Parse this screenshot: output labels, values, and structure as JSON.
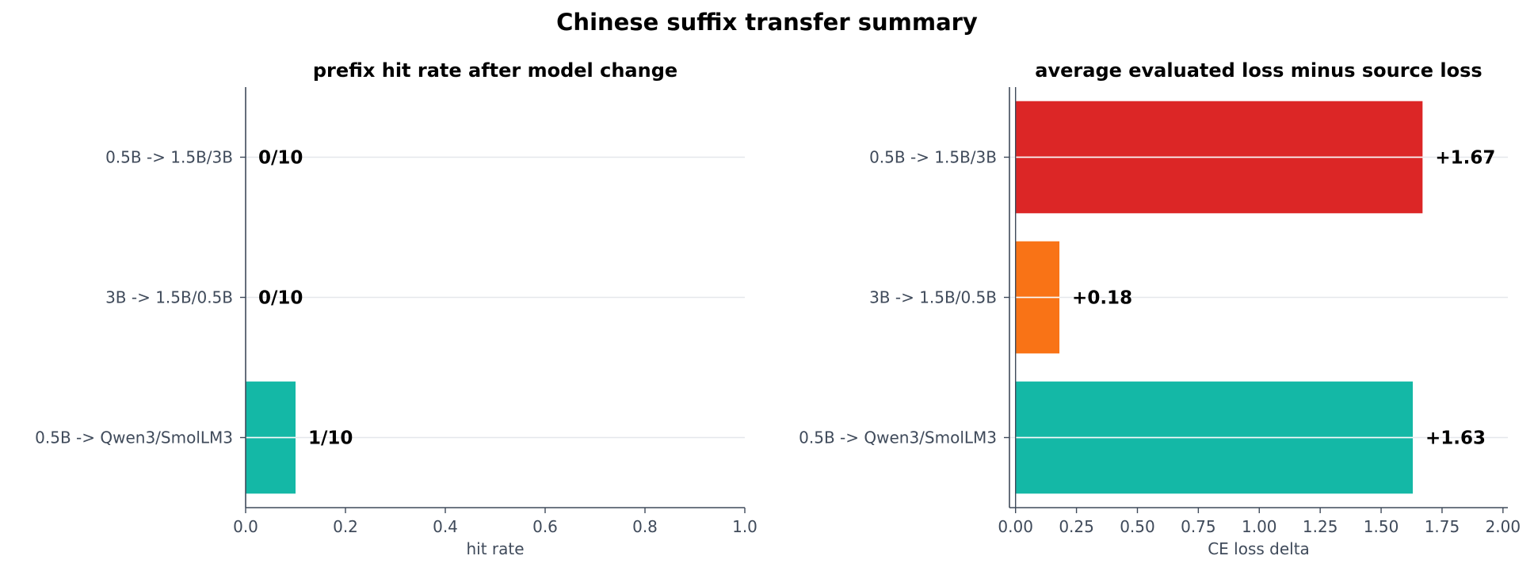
{
  "title": "Chinese suffix transfer summary",
  "colors": {
    "teal": "#14b8a6",
    "orange": "#f97316",
    "red": "#dc2626",
    "axis": "#3f4a5a",
    "grid": "#e5e7eb"
  },
  "chart_data": [
    {
      "type": "bar",
      "orientation": "horizontal",
      "title": "prefix hit rate after model change",
      "xlabel": "hit rate",
      "ylabel": "",
      "xlim": [
        0,
        1
      ],
      "xticks": [
        0,
        0.2,
        0.4,
        0.6,
        0.8,
        1
      ],
      "tick_labels": [
        "0.0",
        "0.2",
        "0.4",
        "0.6",
        "0.8",
        "1.0"
      ],
      "grid": "horizontal",
      "categories": [
        "0.5B -> 1.5B/3B",
        "3B -> 1.5B/0.5B",
        "0.5B -> Qwen3/SmolLM3"
      ],
      "values": [
        0,
        0,
        0.1
      ],
      "data_labels": [
        "0/10",
        "0/10",
        "1/10"
      ],
      "bar_colors": [
        "#14b8a6",
        "#14b8a6",
        "#14b8a6"
      ]
    },
    {
      "type": "bar",
      "orientation": "horizontal",
      "title": "average evaluated loss minus source loss",
      "xlabel": "CE loss delta",
      "ylabel": "",
      "xlim": [
        -0.025,
        2.02
      ],
      "xticks": [
        0,
        0.25,
        0.5,
        0.75,
        1,
        1.25,
        1.5,
        1.75,
        2
      ],
      "tick_labels": [
        "0.00",
        "0.25",
        "0.50",
        "0.75",
        "1.00",
        "1.25",
        "1.50",
        "1.75",
        "2.00"
      ],
      "grid": "horizontal",
      "zero_line": true,
      "categories": [
        "0.5B -> 1.5B/3B",
        "3B -> 1.5B/0.5B",
        "0.5B -> Qwen3/SmolLM3"
      ],
      "values": [
        1.67,
        0.18,
        1.63
      ],
      "data_labels": [
        "+1.67",
        "+0.18",
        "+1.63"
      ],
      "bar_colors": [
        "#dc2626",
        "#f97316",
        "#14b8a6"
      ]
    }
  ]
}
